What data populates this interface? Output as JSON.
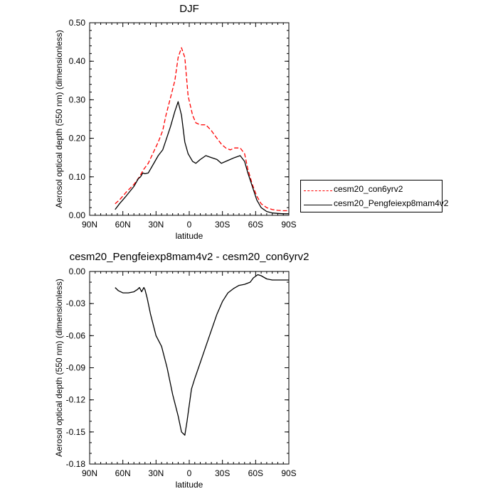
{
  "chart_data": [
    {
      "type": "line",
      "title": "DJF",
      "xlabel": "latitude",
      "ylabel": "Aerosol optical depth (550 nm) (dimensionless)",
      "xlim": [
        90,
        -90
      ],
      "x_ticks": [
        90,
        60,
        30,
        0,
        -30,
        -60,
        -90
      ],
      "x_tick_labels": [
        "90N",
        "60N",
        "30N",
        "0",
        "30S",
        "60S",
        "90S"
      ],
      "ylim": [
        0,
        0.5
      ],
      "y_tick_labels": [
        "0.00",
        "0.10",
        "0.20",
        "0.30",
        "0.40",
        "0.50"
      ],
      "y_ticks": [
        0,
        0.1,
        0.2,
        0.3,
        0.4,
        0.5
      ],
      "legend_position": "outside-right",
      "series": [
        {
          "name": "cesm20_con6yrv2",
          "color": "#ff0000",
          "style": "dashed",
          "x": [
            67,
            63,
            57,
            50,
            45,
            41,
            37,
            33,
            28,
            24,
            21,
            17,
            13,
            10,
            7,
            4,
            1,
            -3,
            -6,
            -10,
            -15,
            -20,
            -25,
            -29,
            -33,
            -37,
            -41,
            -46,
            -50,
            -53,
            -57,
            -61,
            -65,
            -70,
            -75,
            -80,
            -85,
            -90
          ],
          "y": [
            0.03,
            0.04,
            0.06,
            0.08,
            0.1,
            0.12,
            0.135,
            0.16,
            0.19,
            0.22,
            0.26,
            0.305,
            0.35,
            0.41,
            0.435,
            0.41,
            0.31,
            0.26,
            0.24,
            0.235,
            0.235,
            0.22,
            0.2,
            0.185,
            0.175,
            0.17,
            0.175,
            0.175,
            0.16,
            0.12,
            0.08,
            0.05,
            0.03,
            0.02,
            0.015,
            0.013,
            0.012,
            0.012
          ]
        },
        {
          "name": "cesm20_Pengfeiexp8mam4v2",
          "color": "#000000",
          "style": "solid",
          "x": [
            67,
            63,
            57,
            50,
            46,
            44,
            42,
            40,
            37,
            33,
            28,
            24,
            21,
            17,
            13,
            10,
            7,
            4,
            1,
            -3,
            -6,
            -10,
            -15,
            -20,
            -25,
            -29,
            -33,
            -37,
            -41,
            -46,
            -50,
            -53,
            -57,
            -61,
            -65,
            -70,
            -75,
            -80,
            -85,
            -90
          ],
          "y": [
            0.015,
            0.03,
            0.05,
            0.075,
            0.095,
            0.1,
            0.11,
            0.108,
            0.11,
            0.13,
            0.155,
            0.17,
            0.195,
            0.23,
            0.27,
            0.295,
            0.26,
            0.19,
            0.16,
            0.14,
            0.135,
            0.145,
            0.155,
            0.15,
            0.145,
            0.135,
            0.14,
            0.145,
            0.15,
            0.155,
            0.14,
            0.11,
            0.075,
            0.04,
            0.02,
            0.01,
            0.006,
            0.005,
            0.004,
            0.004
          ]
        }
      ]
    },
    {
      "type": "line",
      "title": "cesm20_Pengfeiexp8mam4v2 - cesm20_con6yrv2",
      "xlabel": "latitude",
      "ylabel": "Aerosol optical depth (550 nm) (dimensionless)",
      "xlim": [
        90,
        -90
      ],
      "x_ticks": [
        90,
        60,
        30,
        0,
        -30,
        -60,
        -90
      ],
      "x_tick_labels": [
        "90N",
        "60N",
        "30N",
        "0",
        "30S",
        "60S",
        "90S"
      ],
      "ylim": [
        -0.18,
        0
      ],
      "y_tick_labels": [
        "-0.18",
        "-0.15",
        "-0.12",
        "-0.09",
        "-0.06",
        "-0.03",
        "0.00"
      ],
      "y_ticks": [
        -0.18,
        -0.15,
        -0.12,
        -0.09,
        -0.06,
        -0.03,
        0
      ],
      "series": [
        {
          "name": "",
          "color": "#000000",
          "style": "solid",
          "x": [
            67,
            64,
            60,
            55,
            50,
            47,
            45,
            43,
            41,
            40,
            38,
            35,
            30,
            25,
            20,
            15,
            10,
            7,
            4,
            2,
            0,
            -2,
            -5,
            -10,
            -15,
            -20,
            -25,
            -30,
            -35,
            -40,
            -45,
            -50,
            -55,
            -58,
            -62,
            -65,
            -70,
            -75,
            -80,
            -85,
            -90
          ],
          "y": [
            -0.015,
            -0.018,
            -0.02,
            -0.02,
            -0.019,
            -0.017,
            -0.015,
            -0.019,
            -0.015,
            -0.017,
            -0.025,
            -0.04,
            -0.06,
            -0.07,
            -0.09,
            -0.115,
            -0.135,
            -0.15,
            -0.153,
            -0.14,
            -0.125,
            -0.11,
            -0.1,
            -0.085,
            -0.07,
            -0.055,
            -0.04,
            -0.028,
            -0.02,
            -0.016,
            -0.013,
            -0.012,
            -0.01,
            -0.006,
            -0.003,
            -0.004,
            -0.007,
            -0.008,
            -0.008,
            -0.008,
            -0.008
          ]
        }
      ]
    }
  ]
}
